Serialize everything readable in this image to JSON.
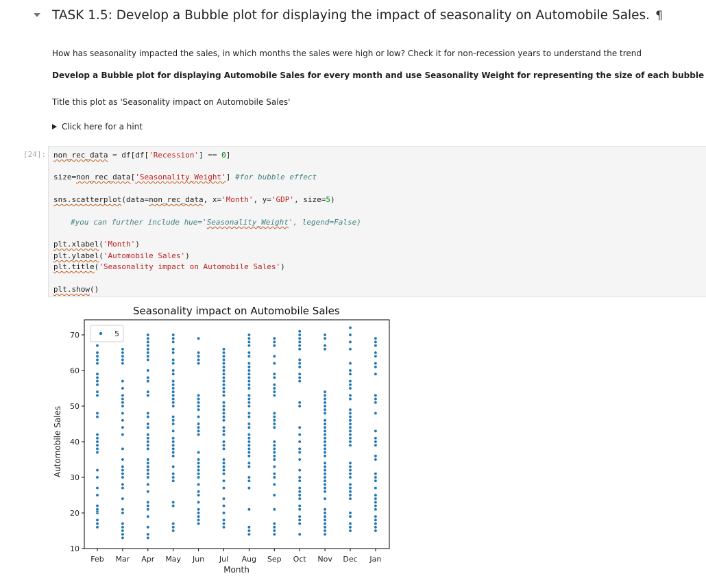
{
  "heading": {
    "title": "TASK 1.5: Develop a Bubble plot for displaying the impact of seasonality on Automobile Sales.",
    "anchor_symbol": "¶"
  },
  "markdown": {
    "question": "How has seasonality impacted the sales, in which months the sales were high or low? Check it for non-recession years to understand the trend",
    "instruction": "Develop a Bubble plot for displaying Automobile Sales for every month and use Seasonality Weight for representing the size of each bubble",
    "title_note": "Title this plot as 'Seasonality impact on Automobile Sales'",
    "hint_label": "Click here for a hint"
  },
  "cell": {
    "prompt": "[24]:",
    "code": {
      "l1_var": "non_rec_data",
      "l1_op": " = ",
      "l1_rest_a": "df[df[",
      "l1_str": "'Recession'",
      "l1_rest_b": "] ",
      "l1_eq": "==",
      "l1_sp": " ",
      "l1_num": "0",
      "l1_end": "]",
      "l2_a": "size=",
      "l2_var": "non_rec_data",
      "l2_b": "[",
      "l2_str": "'Seasonality_Weight'",
      "l2_c": "] ",
      "l2_comment": "#for bubble effect",
      "l3_mod": "sns.scatterplot",
      "l3_a": "(data=",
      "l3_var": "non_rec_data",
      "l3_b": ", x=",
      "l3_s1": "'Month'",
      "l3_c": ", y=",
      "l3_s2": "'GDP'",
      "l3_d": ", size=",
      "l3_num": "5",
      "l3_e": ")",
      "l4_comment_a": "#you can further include hue='",
      "l4_comment_sq": "Seasonality_Weight",
      "l4_comment_b": "', legend=False)",
      "l5_mod": "plt.xlabel",
      "l5_a": "(",
      "l5_str": "'Month'",
      "l5_b": ")",
      "l6_mod": "plt.ylabel",
      "l6_a": "(",
      "l6_str": "'Automobile Sales'",
      "l6_b": ")",
      "l7_mod": "plt.title",
      "l7_a": "(",
      "l7_str": "'Seasonality impact on Automobile Sales'",
      "l7_b": ")",
      "l8_mod": "plt.show",
      "l8_a": "()"
    }
  },
  "chart_data": {
    "type": "scatter",
    "title": "Seasonality impact on Automobile Sales",
    "xlabel": "Month",
    "ylabel": "Automobile Sales",
    "categories": [
      "Feb",
      "Mar",
      "Apr",
      "May",
      "Jun",
      "Jul",
      "Aug",
      "Sep",
      "Oct",
      "Nov",
      "Dec",
      "Jan"
    ],
    "yticks": [
      10,
      20,
      30,
      40,
      50,
      60,
      70
    ],
    "ylim": [
      10,
      70
    ],
    "grid": false,
    "legend": {
      "label": "5",
      "placement": "top-left"
    },
    "marker_color": "#1f77b4",
    "series": [
      {
        "category": "Feb",
        "values": [
          16,
          17,
          18,
          20,
          20.5,
          21,
          22,
          25,
          27,
          30,
          32,
          37,
          38,
          39,
          40,
          41,
          42,
          47,
          48,
          53,
          54,
          56,
          57,
          58,
          59,
          62,
          63,
          64,
          65,
          67
        ]
      },
      {
        "category": "Mar",
        "values": [
          13,
          14,
          15,
          16,
          17,
          20,
          21,
          24,
          27,
          28,
          30,
          31,
          32,
          33,
          35,
          38,
          42,
          44,
          46,
          48,
          50,
          51,
          52,
          53,
          55,
          57,
          62,
          63,
          64,
          65,
          66
        ]
      },
      {
        "category": "Apr",
        "values": [
          13,
          14,
          16,
          19,
          21,
          22,
          23,
          26,
          28,
          30,
          31,
          32,
          33,
          34,
          35,
          38,
          39,
          40,
          41,
          42,
          44,
          45,
          47,
          48,
          53,
          54,
          57,
          58,
          60,
          63,
          64,
          65,
          66,
          67,
          68,
          69,
          70
        ]
      },
      {
        "category": "May",
        "values": [
          15,
          16,
          17,
          22,
          23,
          29,
          30,
          31,
          33,
          36,
          37,
          38,
          39,
          40,
          41,
          43,
          45,
          46,
          47,
          50,
          51,
          52,
          53,
          54,
          55,
          56,
          57,
          59,
          60,
          62,
          63,
          65,
          66,
          68,
          69,
          70
        ]
      },
      {
        "category": "Jun",
        "values": [
          17,
          18,
          19,
          20,
          21,
          23,
          25,
          26,
          28,
          30,
          31,
          32,
          33,
          34,
          35,
          37,
          42,
          43,
          44,
          45,
          47,
          49,
          50,
          51,
          52,
          53,
          62,
          63,
          64,
          65,
          69
        ]
      },
      {
        "category": "Jul",
        "values": [
          16,
          17,
          18,
          20,
          22,
          24,
          27,
          29,
          31,
          32,
          33,
          34,
          35,
          38,
          39,
          40,
          42,
          43,
          44,
          46,
          47,
          48,
          49,
          50,
          51,
          53,
          54,
          55,
          56,
          57,
          58,
          59,
          60,
          61,
          62,
          63,
          64,
          65,
          66
        ]
      },
      {
        "category": "Aug",
        "values": [
          14,
          15,
          16,
          21,
          27,
          29,
          30,
          33,
          34,
          36,
          37,
          38,
          39,
          40,
          41,
          42,
          44,
          45,
          47,
          48,
          50,
          51,
          52,
          53,
          55,
          56,
          57,
          58,
          59,
          60,
          61,
          62,
          64,
          65,
          67,
          68,
          69,
          70
        ]
      },
      {
        "category": "Sep",
        "values": [
          14,
          15,
          16,
          17,
          21,
          25,
          28,
          30,
          31,
          33,
          35,
          36,
          37,
          38,
          39,
          40,
          44,
          45,
          46,
          47,
          48,
          53,
          54,
          55,
          56,
          58,
          59,
          62,
          64,
          67,
          68,
          69
        ]
      },
      {
        "category": "Oct",
        "values": [
          14,
          17,
          18,
          19,
          21,
          22,
          24,
          25,
          26,
          27,
          29,
          30,
          32,
          35,
          37,
          38,
          40,
          42,
          44,
          50,
          51,
          57,
          58,
          59,
          61,
          62,
          63,
          66,
          67,
          68,
          69,
          70,
          71
        ]
      },
      {
        "category": "Nov",
        "values": [
          14,
          15,
          16,
          17,
          18,
          19,
          20,
          21,
          24,
          26,
          27,
          28,
          29,
          30,
          31,
          32,
          33,
          34,
          36,
          37,
          38,
          39,
          40,
          41,
          42,
          43,
          44,
          45,
          46,
          48,
          49,
          50,
          51,
          52,
          53,
          54,
          66,
          67,
          69,
          70
        ]
      },
      {
        "category": "Dec",
        "values": [
          15,
          16,
          17,
          19,
          20,
          24,
          25,
          26,
          27,
          28,
          30,
          31,
          32,
          33,
          34,
          39,
          40,
          41,
          42,
          43,
          44,
          45,
          46,
          47,
          48,
          49,
          52,
          53,
          55,
          56,
          57,
          59,
          60,
          62,
          66,
          68,
          70,
          72
        ]
      },
      {
        "category": "Jan",
        "values": [
          15,
          16,
          17,
          18,
          19,
          21,
          22,
          23,
          24,
          25,
          27,
          29,
          30,
          31,
          35,
          36,
          39,
          40,
          41,
          43,
          48,
          51,
          52,
          53,
          59,
          61,
          62,
          64,
          65,
          67,
          68,
          69
        ]
      }
    ]
  }
}
